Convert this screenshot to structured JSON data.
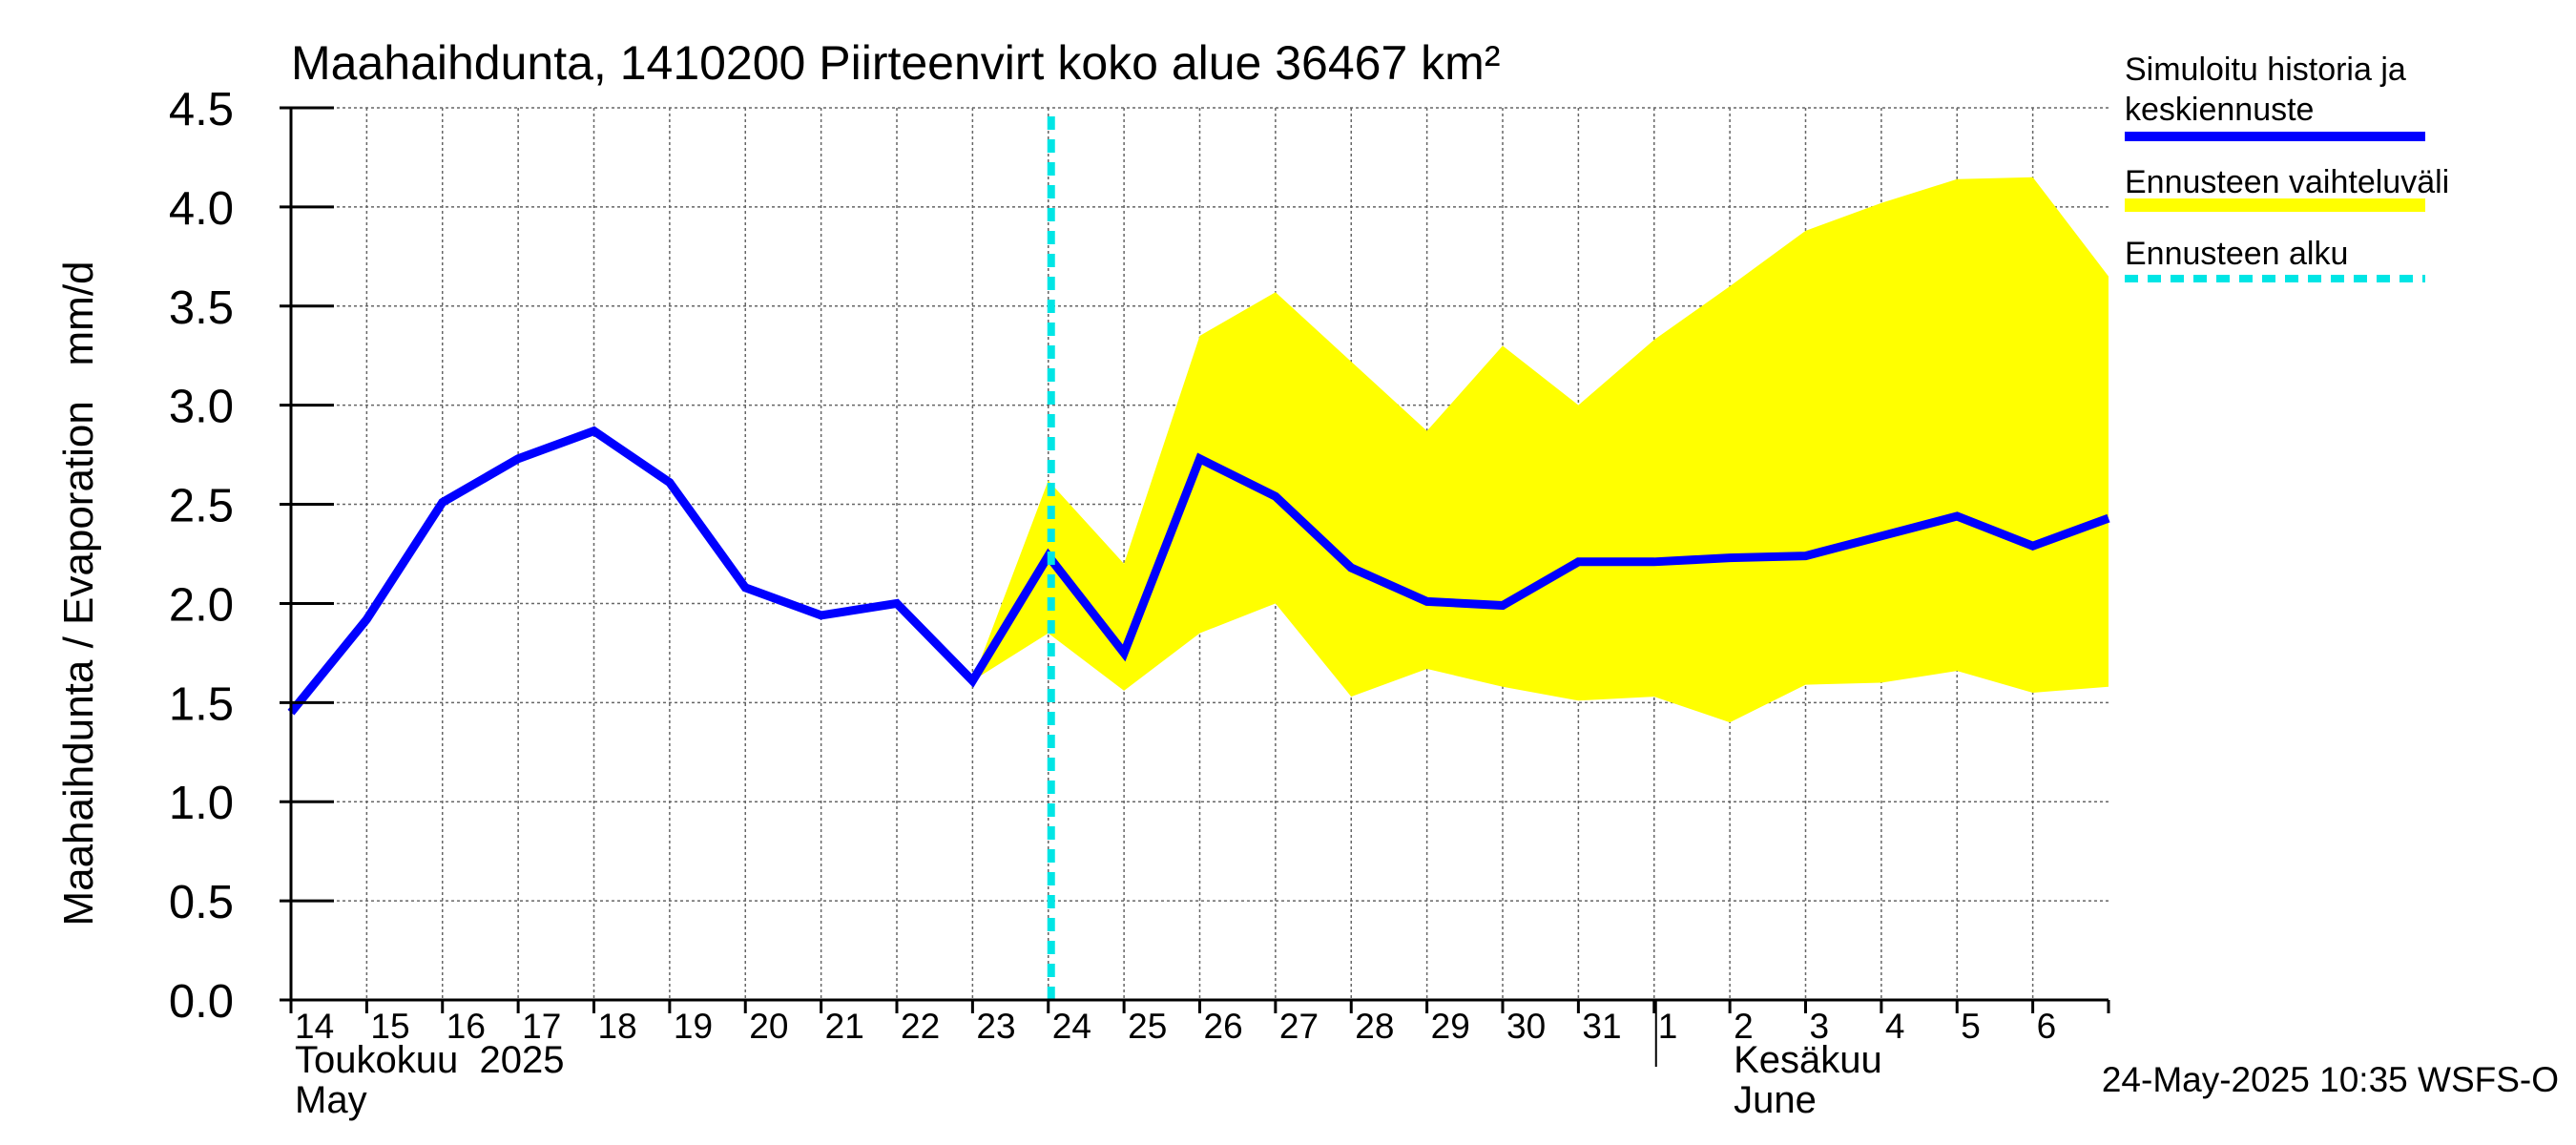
{
  "chart_data": {
    "type": "line",
    "title": "Maahaihdunta, 1410200 Piirteenvirt koko alue 36467 km²",
    "ylabel": "Maahaihdunta / Evaporation   mm/d",
    "ylim": [
      0,
      4.5
    ],
    "yticks": [
      "0.0",
      "0.5",
      "1.0",
      "1.5",
      "2.0",
      "2.5",
      "3.0",
      "3.5",
      "4.0",
      "4.5"
    ],
    "ytick_values": [
      0,
      0.5,
      1.0,
      1.5,
      2.0,
      2.5,
      3.0,
      3.5,
      4.0,
      4.5
    ],
    "xlim": [
      0,
      24
    ],
    "x_labels": [
      "14",
      "15",
      "16",
      "17",
      "18",
      "19",
      "20",
      "21",
      "22",
      "23",
      "24",
      "25",
      "26",
      "27",
      "28",
      "29",
      "30",
      "31",
      "1",
      "2",
      "3",
      "4",
      "5",
      "6"
    ],
    "month_labels": [
      {
        "line1": "Toukokuu  2025",
        "line2": "May",
        "at_day_index": 0
      },
      {
        "line1": "Kesäkuu",
        "line2": "June",
        "at_day_index": 19
      }
    ],
    "month_divider_day_index": 18,
    "forecast_start_x": 10,
    "grid": true,
    "legend_position": "right",
    "series": [
      {
        "name": "Simuloitu historia ja keskiennuste",
        "color": "#0000ff",
        "x": [
          0,
          1,
          2,
          3,
          4,
          5,
          6,
          7,
          8,
          9,
          10,
          11,
          12,
          13,
          14,
          15,
          16,
          17,
          18,
          19,
          20,
          21,
          22,
          23,
          24
        ],
        "values": [
          1.45,
          1.92,
          2.51,
          2.73,
          2.87,
          2.61,
          2.08,
          1.94,
          2.0,
          1.61,
          2.24,
          1.75,
          2.73,
          2.54,
          2.18,
          2.01,
          1.99,
          2.21,
          2.21,
          2.23,
          2.24,
          2.34,
          2.44,
          2.29,
          2.43
        ]
      }
    ],
    "band": {
      "name": "Ennusteen vaihteluväli",
      "color": "#ffff00",
      "x": [
        9,
        10,
        11,
        12,
        13,
        14,
        15,
        16,
        17,
        18,
        19,
        20,
        21,
        22,
        23,
        24
      ],
      "upper": [
        1.61,
        2.62,
        2.2,
        3.35,
        3.57,
        3.22,
        2.87,
        3.3,
        3.0,
        3.33,
        3.6,
        3.88,
        4.02,
        4.14,
        4.15,
        3.65
      ],
      "lower": [
        1.61,
        1.85,
        1.56,
        1.85,
        2.0,
        1.53,
        1.67,
        1.58,
        1.51,
        1.53,
        1.4,
        1.59,
        1.6,
        1.66,
        1.55,
        1.58
      ]
    },
    "forecast_line": {
      "name": "Ennusteen alku",
      "color": "#00e5e5"
    },
    "legend": [
      {
        "label_lines": [
          "Simuloitu historia ja",
          "keskiennuste"
        ],
        "color": "#0000ff",
        "style": "solid"
      },
      {
        "label_lines": [
          "Ennusteen vaihteluväli"
        ],
        "color": "#ffff00",
        "style": "band"
      },
      {
        "label_lines": [
          "Ennusteen alku"
        ],
        "color": "#00e5e5",
        "style": "dashed"
      }
    ],
    "footer": "24-May-2025 10:35 WSFS-O"
  }
}
